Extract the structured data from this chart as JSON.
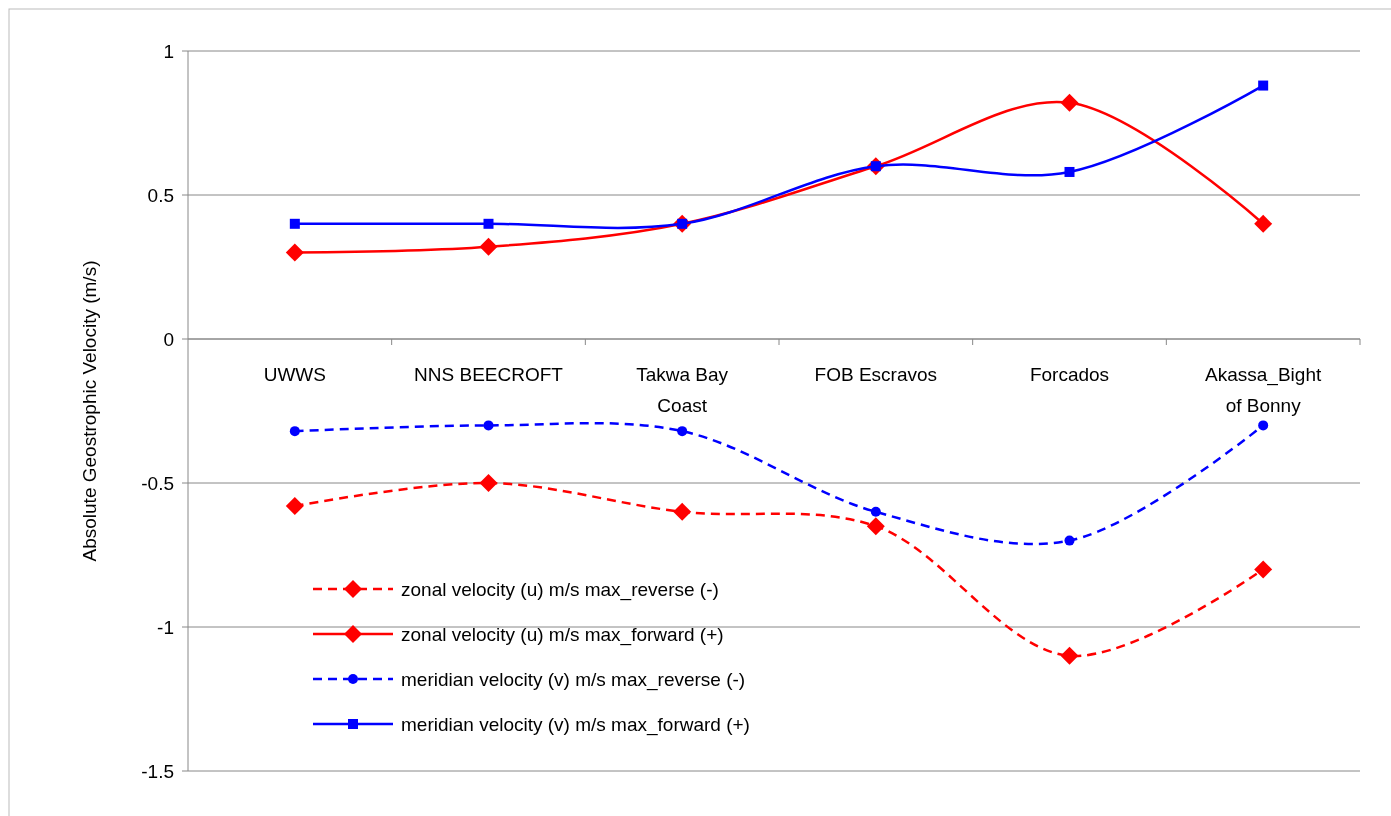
{
  "chart_data": {
    "type": "line",
    "ylabel": "Absolute Geostrophic Velocity (m/s)",
    "categories": [
      "UWWS",
      "NNS BEECROFT",
      "Takwa Bay Coast",
      "FOB Escravos",
      "Forcados",
      "Akassa_Bight of Bonny"
    ],
    "series": [
      {
        "name": "zonal velocity (u) m/s max_reverse (-)",
        "color": "#ff0000",
        "line_style": "dashed",
        "marker": "diamond",
        "values": [
          -0.58,
          -0.5,
          -0.6,
          -0.65,
          -1.1,
          -0.8
        ]
      },
      {
        "name": "zonal velocity (u) m/s max_forward (+)",
        "color": "#ff0000",
        "line_style": "solid",
        "marker": "diamond",
        "values": [
          0.3,
          0.32,
          0.4,
          0.6,
          0.82,
          0.4
        ]
      },
      {
        "name": "meridian velocity (v) m/s max_reverse  (-)",
        "color": "#0000ff",
        "line_style": "dashed",
        "marker": "circle",
        "values": [
          -0.32,
          -0.3,
          -0.32,
          -0.6,
          -0.7,
          -0.3
        ]
      },
      {
        "name": "meridian velocity (v) m/s max_forward (+)",
        "color": "#0000ff",
        "line_style": "solid",
        "marker": "square",
        "values": [
          0.4,
          0.4,
          0.4,
          0.6,
          0.58,
          0.88
        ]
      }
    ],
    "ylim": [
      -1.5,
      1
    ],
    "yticks": [
      -1.5,
      -1,
      -0.5,
      0,
      0.5,
      1
    ],
    "grid": "y",
    "legend": "bottom left"
  }
}
